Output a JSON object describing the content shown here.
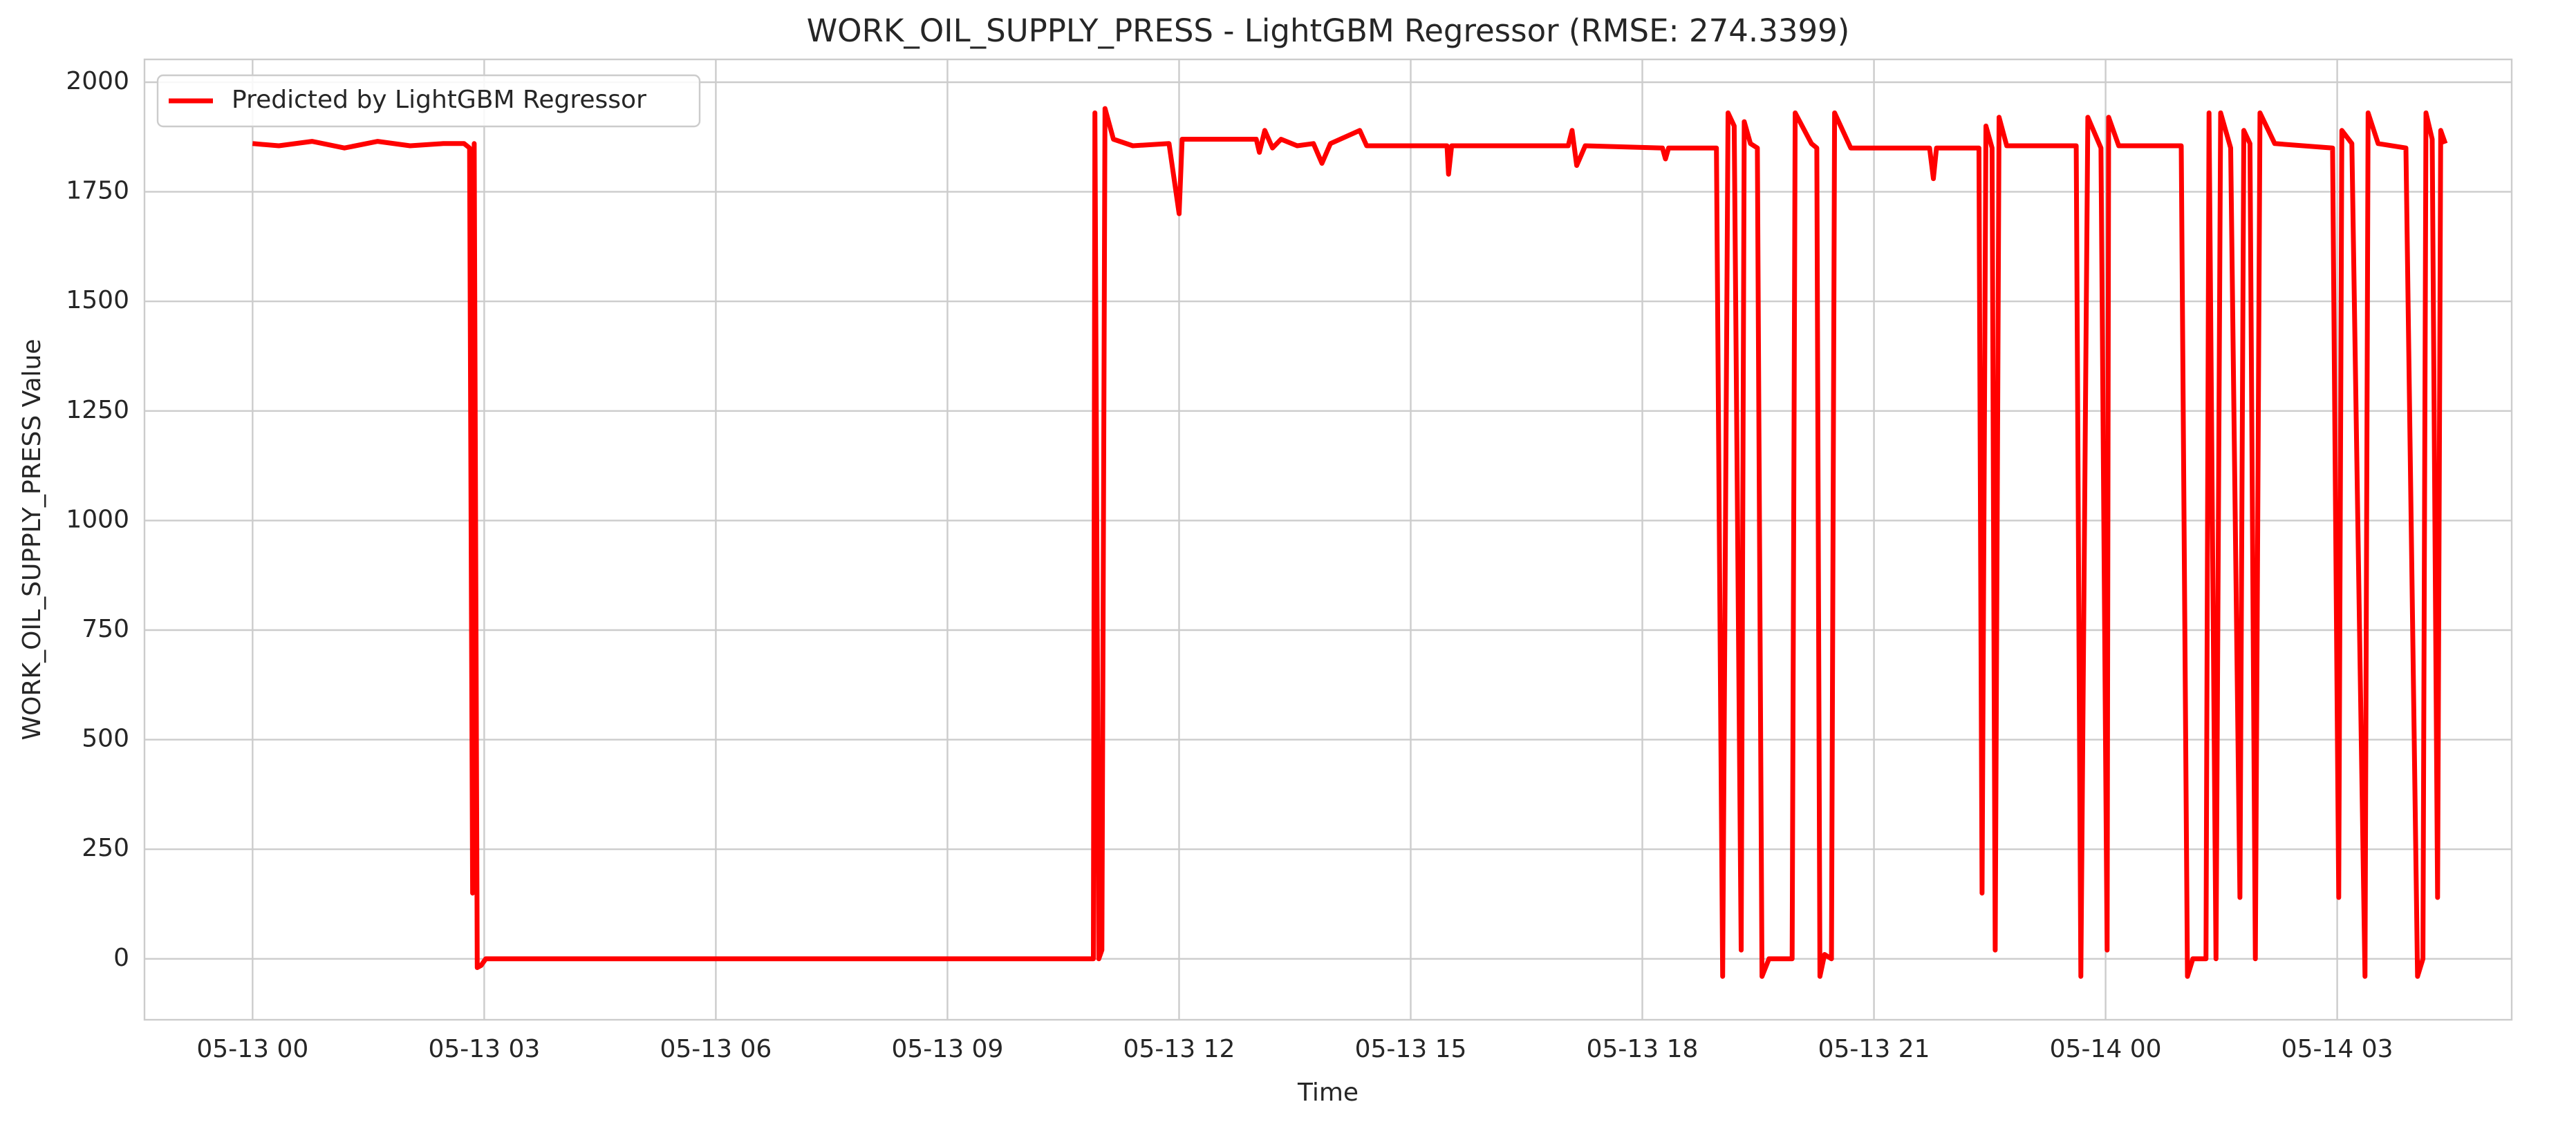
{
  "chart_data": {
    "type": "line",
    "title": "WORK_OIL_SUPPLY_PRESS - LightGBM Regressor (RMSE: 274.3399)",
    "x_label": "Time",
    "y_label": "WORK_OIL_SUPPLY_PRESS Value",
    "x": [
      0.0,
      0.34,
      0.77,
      1.19,
      1.62,
      2.04,
      2.47,
      2.74,
      2.81,
      2.85,
      2.87,
      2.91,
      2.96,
      3.02,
      10.89,
      10.91,
      10.96,
      11.0,
      11.04,
      11.15,
      11.4,
      11.87,
      12.0,
      12.04,
      13.0,
      13.04,
      13.11,
      13.21,
      13.32,
      13.53,
      13.74,
      13.85,
      13.96,
      14.34,
      14.43,
      15.47,
      15.49,
      15.53,
      17.04,
      17.09,
      17.15,
      17.26,
      18.26,
      18.3,
      18.34,
      18.96,
      19.04,
      19.11,
      19.19,
      19.28,
      19.32,
      19.4,
      19.49,
      19.55,
      19.64,
      19.94,
      19.98,
      20.19,
      20.26,
      20.3,
      20.36,
      20.45,
      20.49,
      20.7,
      21.72,
      21.77,
      21.81,
      22.36,
      22.4,
      22.45,
      22.53,
      22.57,
      22.62,
      22.72,
      23.62,
      23.68,
      23.77,
      23.94,
      24.02,
      24.04,
      24.17,
      24.98,
      25.06,
      25.13,
      25.3,
      25.34,
      25.43,
      25.49,
      25.62,
      25.74,
      25.79,
      25.87,
      25.94,
      26.0,
      26.19,
      26.94,
      27.02,
      27.06,
      27.19,
      27.36,
      27.4,
      27.53,
      27.89,
      28.04,
      28.11,
      28.15,
      28.23,
      28.3,
      28.34,
      28.4
    ],
    "series": [
      {
        "name": "Predicted by LightGBM Regressor",
        "color": "#ff0000",
        "values": [
          1860,
          1855,
          1865,
          1850,
          1865,
          1855,
          1860,
          1860,
          1850,
          150,
          1860,
          -20,
          -15,
          0,
          0,
          1930,
          0,
          20,
          1940,
          1870,
          1855,
          1860,
          1700,
          1870,
          1870,
          1840,
          1890,
          1850,
          1870,
          1855,
          1860,
          1815,
          1860,
          1890,
          1855,
          1855,
          1790,
          1855,
          1855,
          1890,
          1810,
          1855,
          1850,
          1825,
          1850,
          1850,
          -40,
          1930,
          1900,
          20,
          1910,
          1860,
          1850,
          -40,
          0,
          0,
          1930,
          1860,
          1850,
          -40,
          10,
          0,
          1930,
          1850,
          1850,
          1780,
          1850,
          1850,
          150,
          1900,
          1850,
          20,
          1920,
          1855,
          1855,
          -40,
          1920,
          1850,
          20,
          1920,
          1855,
          1855,
          -40,
          0,
          0,
          1930,
          0,
          1930,
          1850,
          140,
          1890,
          1860,
          0,
          1930,
          1860,
          1850,
          140,
          1890,
          1860,
          -40,
          1930,
          1860,
          1850,
          -40,
          0,
          1930,
          1870,
          140,
          1890,
          1860
        ]
      }
    ],
    "xlim": [
      -1.4,
      29.26
    ],
    "xticks": [
      {
        "value": 0,
        "label": "05-13 00"
      },
      {
        "value": 3,
        "label": "05-13 03"
      },
      {
        "value": 6,
        "label": "05-13 06"
      },
      {
        "value": 9,
        "label": "05-13 09"
      },
      {
        "value": 12,
        "label": "05-13 12"
      },
      {
        "value": 15,
        "label": "05-13 15"
      },
      {
        "value": 18,
        "label": "05-13 18"
      },
      {
        "value": 21,
        "label": "05-13 21"
      },
      {
        "value": 24,
        "label": "05-14 00"
      },
      {
        "value": 27,
        "label": "05-14 03"
      }
    ],
    "ylim": [
      -139,
      2052
    ],
    "yticks": [
      0,
      250,
      500,
      750,
      1000,
      1250,
      1500,
      1750,
      2000
    ],
    "grid": true,
    "legend": "upper left"
  }
}
